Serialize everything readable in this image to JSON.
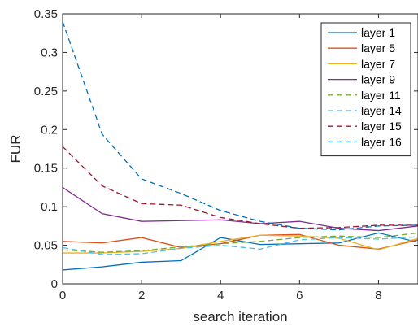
{
  "chart_data": {
    "type": "line",
    "xlabel": "search iteration",
    "ylabel": "FUR",
    "xlim": [
      0,
      9
    ],
    "ylim": [
      0,
      0.35
    ],
    "x_ticks": [
      "0",
      "2",
      "4",
      "6",
      "8"
    ],
    "y_ticks": [
      "0",
      "0.05",
      "0.1",
      "0.15",
      "0.2",
      "0.25",
      "0.3",
      "0.35"
    ],
    "grid": false,
    "legend_position": "top-right",
    "x": [
      0,
      1,
      2,
      3,
      4,
      5,
      6,
      7,
      8,
      9
    ],
    "series": [
      {
        "name": "layer 1",
        "color": "#0072BD",
        "dashed": false,
        "values": [
          0.018,
          0.022,
          0.028,
          0.03,
          0.06,
          0.051,
          0.052,
          0.053,
          0.066,
          0.054
        ]
      },
      {
        "name": "layer 5",
        "color": "#D95319",
        "dashed": false,
        "values": [
          0.055,
          0.053,
          0.06,
          0.047,
          0.052,
          0.063,
          0.064,
          0.05,
          0.045,
          0.057
        ]
      },
      {
        "name": "layer 7",
        "color": "#EDB120",
        "dashed": false,
        "values": [
          0.04,
          0.04,
          0.042,
          0.046,
          0.055,
          0.063,
          0.062,
          0.059,
          0.044,
          0.059
        ]
      },
      {
        "name": "layer 9",
        "color": "#7E2F8E",
        "dashed": false,
        "values": [
          0.125,
          0.091,
          0.081,
          0.082,
          0.083,
          0.078,
          0.081,
          0.072,
          0.069,
          0.075
        ]
      },
      {
        "name": "layer 11",
        "color": "#77AC30",
        "dashed": true,
        "values": [
          0.044,
          0.041,
          0.043,
          0.048,
          0.052,
          0.055,
          0.06,
          0.062,
          0.06,
          0.066
        ]
      },
      {
        "name": "layer 14",
        "color": "#4DBEEE",
        "dashed": true,
        "values": [
          0.047,
          0.038,
          0.039,
          0.046,
          0.05,
          0.045,
          0.057,
          0.06,
          0.058,
          0.061
        ]
      },
      {
        "name": "layer 15",
        "color": "#A2142F",
        "dashed": true,
        "values": [
          0.178,
          0.127,
          0.104,
          0.102,
          0.086,
          0.078,
          0.072,
          0.073,
          0.076,
          0.076
        ]
      },
      {
        "name": "layer 16",
        "color": "#0072BD",
        "dashed": true,
        "values": [
          0.34,
          0.194,
          0.136,
          0.117,
          0.095,
          0.081,
          0.072,
          0.07,
          0.075,
          0.076
        ]
      }
    ]
  }
}
